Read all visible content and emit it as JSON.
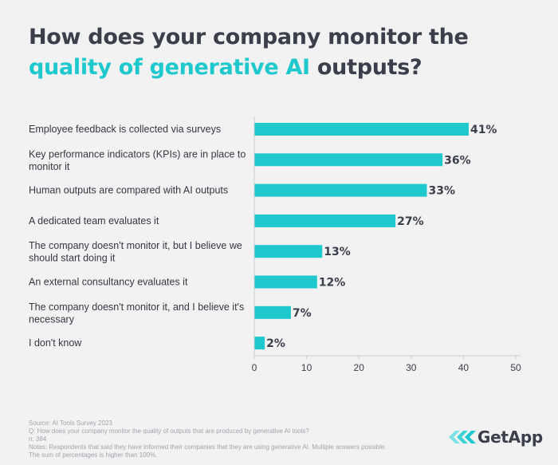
{
  "title": {
    "part1": "How does your company monitor the ",
    "accent": "quality of generative AI",
    "part2": " outputs?"
  },
  "chart_data": {
    "type": "bar",
    "orientation": "horizontal",
    "categories": [
      [
        "Employee feedback is collected via surveys"
      ],
      [
        "Key performance indicators (KPIs) are in place to",
        "monitor it"
      ],
      [
        "Human outputs are compared with AI outputs"
      ],
      [
        "A dedicated team evaluates it"
      ],
      [
        "The company doesn't monitor it, but I believe we",
        "should start doing it"
      ],
      [
        "An external consultancy evaluates it"
      ],
      [
        "The company doesn't monitor it, and I believe it's",
        "necessary"
      ],
      [
        "I don't know"
      ]
    ],
    "values": [
      41,
      36,
      33,
      27,
      13,
      12,
      7,
      2
    ],
    "value_labels": [
      "41%",
      "36%",
      "33%",
      "27%",
      "13%",
      "12%",
      "7%",
      "2%"
    ],
    "xlim": [
      0,
      50
    ],
    "xticks": [
      0,
      10,
      20,
      30,
      40,
      50
    ],
    "grid": false,
    "bar_color": "#1ec8cc"
  },
  "footer": {
    "source": "Source: AI Tools Survey 2023",
    "question": "Q: How does your company monitor the quality of outputs that are produced by generative AI tools?",
    "n": "n: 384",
    "notes1": "Notes: Respondents that said they have informed their companies that they are using generative AI. Multiple answers possible.",
    "notes2": "The sum of percentages is higher than 100%."
  },
  "logo": {
    "text": "GetApp"
  }
}
